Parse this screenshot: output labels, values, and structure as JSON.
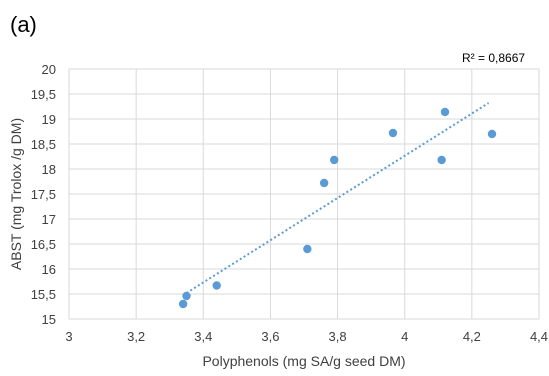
{
  "panel_label": "(a)",
  "colors": {
    "marker": "#5b9bd5",
    "trendline": "#5b9bd5",
    "grid": "#d9d9d9",
    "text": "#404040"
  },
  "chart_data": {
    "type": "scatter",
    "title": "",
    "xlabel": "Polyphenols (mg SA/g seed DM)",
    "ylabel": "ABST (mg Trolox /g DM)",
    "xlim": [
      3,
      4.4
    ],
    "ylim": [
      15,
      20
    ],
    "x_ticks": [
      3,
      3.2,
      3.4,
      3.6,
      3.8,
      4,
      4.2,
      4.4
    ],
    "x_tick_labels": [
      "3",
      "3,2",
      "3,4",
      "3,6",
      "3,8",
      "4",
      "4,2",
      "4,4"
    ],
    "y_ticks": [
      15,
      15.5,
      16,
      16.5,
      17,
      17.5,
      18,
      18.5,
      19,
      19.5,
      20
    ],
    "y_tick_labels": [
      "15",
      "15,5",
      "16",
      "16,5",
      "17",
      "17,5",
      "18",
      "18,5",
      "19",
      "19,5",
      "20"
    ],
    "grid": true,
    "series": [
      {
        "x": [
          3.34,
          3.35,
          3.44,
          3.71,
          3.76,
          3.79,
          3.965,
          4.11,
          4.12,
          4.26
        ],
        "y": [
          15.3,
          15.46,
          15.67,
          16.4,
          17.72,
          18.18,
          18.72,
          18.18,
          19.14,
          18.7
        ]
      }
    ],
    "trendline": {
      "type": "linear",
      "style": "dotted",
      "x_range": [
        3.35,
        4.25
      ],
      "y_at_start": 15.52,
      "y_at_end": 19.32
    },
    "r_squared_label": "R² = 0,8667"
  }
}
